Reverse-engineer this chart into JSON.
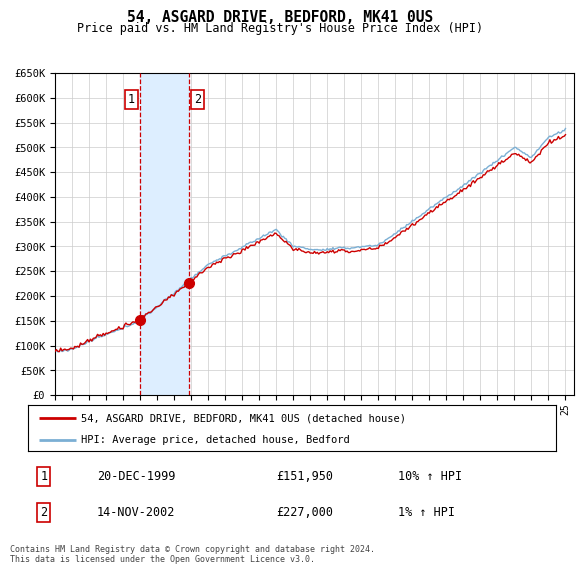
{
  "title": "54, ASGARD DRIVE, BEDFORD, MK41 0US",
  "subtitle": "Price paid vs. HM Land Registry's House Price Index (HPI)",
  "legend_line1": "54, ASGARD DRIVE, BEDFORD, MK41 0US (detached house)",
  "legend_line2": "HPI: Average price, detached house, Bedford",
  "sale1_date": "20-DEC-1999",
  "sale1_price": 151950,
  "sale2_date": "14-NOV-2002",
  "sale2_price": 227000,
  "sale1_hpi_pct": "10% ↑ HPI",
  "sale2_hpi_pct": "1% ↑ HPI",
  "footer": "Contains HM Land Registry data © Crown copyright and database right 2024.\nThis data is licensed under the Open Government Licence v3.0.",
  "ylim": [
    0,
    650000
  ],
  "yticks": [
    0,
    50000,
    100000,
    150000,
    200000,
    250000,
    300000,
    350000,
    400000,
    450000,
    500000,
    550000,
    600000,
    650000
  ],
  "xlim_start": 1995.0,
  "xlim_end": 2025.5,
  "sale1_x": 1999.97,
  "sale2_x": 2002.87,
  "hpi_line_color": "#7bafd4",
  "price_line_color": "#cc0000",
  "vline_color": "#cc0000",
  "shade_color": "#ddeeff",
  "box_color": "#cc0000",
  "grid_color": "#cccccc"
}
